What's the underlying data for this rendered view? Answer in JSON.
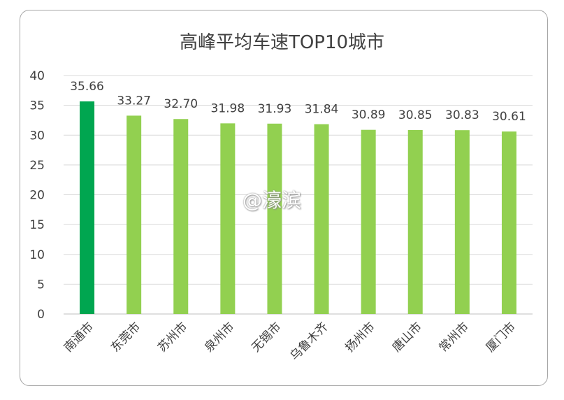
{
  "chart_data": {
    "type": "bar",
    "title": "高峰平均车速TOP10城市",
    "categories": [
      "南通市",
      "东莞市",
      "苏州市",
      "泉州市",
      "无锡市",
      "乌鲁木齐",
      "扬州市",
      "唐山市",
      "常州市",
      "厦门市"
    ],
    "values": [
      35.66,
      33.27,
      32.7,
      31.98,
      31.93,
      31.84,
      30.89,
      30.85,
      30.83,
      30.61
    ],
    "value_labels": [
      "35.66",
      "33.27",
      "32.70",
      "31.98",
      "31.93",
      "31.84",
      "30.89",
      "30.85",
      "30.83",
      "30.61"
    ],
    "ylim": [
      0,
      40
    ],
    "yticks": [
      0,
      5,
      10,
      15,
      20,
      25,
      30,
      35,
      40
    ],
    "grid": true,
    "colors": {
      "highlight": "#00a650",
      "bar": "#92d050",
      "grid": "#d9d9d9",
      "text": "#404040"
    }
  },
  "watermark": "@濠滨"
}
